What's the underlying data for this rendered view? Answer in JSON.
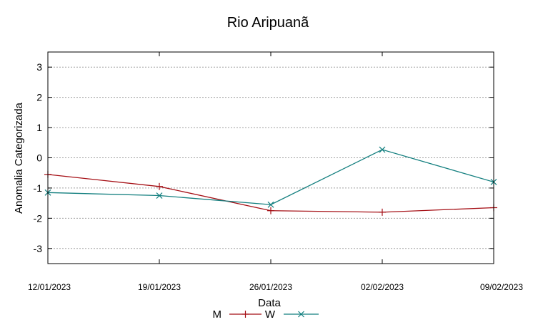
{
  "chart_data": {
    "type": "line",
    "title": "Rio Aripuanã",
    "xlabel": "Data",
    "ylabel": "Anomalia Categorizada",
    "categories": [
      "12/01/2023",
      "19/01/2023",
      "26/01/2023",
      "02/02/2023",
      "09/02/2023"
    ],
    "ylim": [
      -3.5,
      3.5
    ],
    "yticks": [
      3,
      2,
      1,
      0,
      -1,
      -2,
      -3
    ],
    "ytick_labels": [
      "3",
      "2",
      "1",
      "0",
      "-1",
      "-2",
      "-3"
    ],
    "grid": true,
    "legend_position": "bottom-center",
    "series": [
      {
        "name": "M",
        "color": "#a50f15",
        "marker": "plus",
        "values": [
          -0.55,
          -0.95,
          -1.75,
          -1.8,
          -1.65
        ]
      },
      {
        "name": "W",
        "color": "#137f7f",
        "marker": "cross",
        "values": [
          -1.15,
          -1.25,
          -1.55,
          0.27,
          -0.8
        ]
      }
    ]
  }
}
